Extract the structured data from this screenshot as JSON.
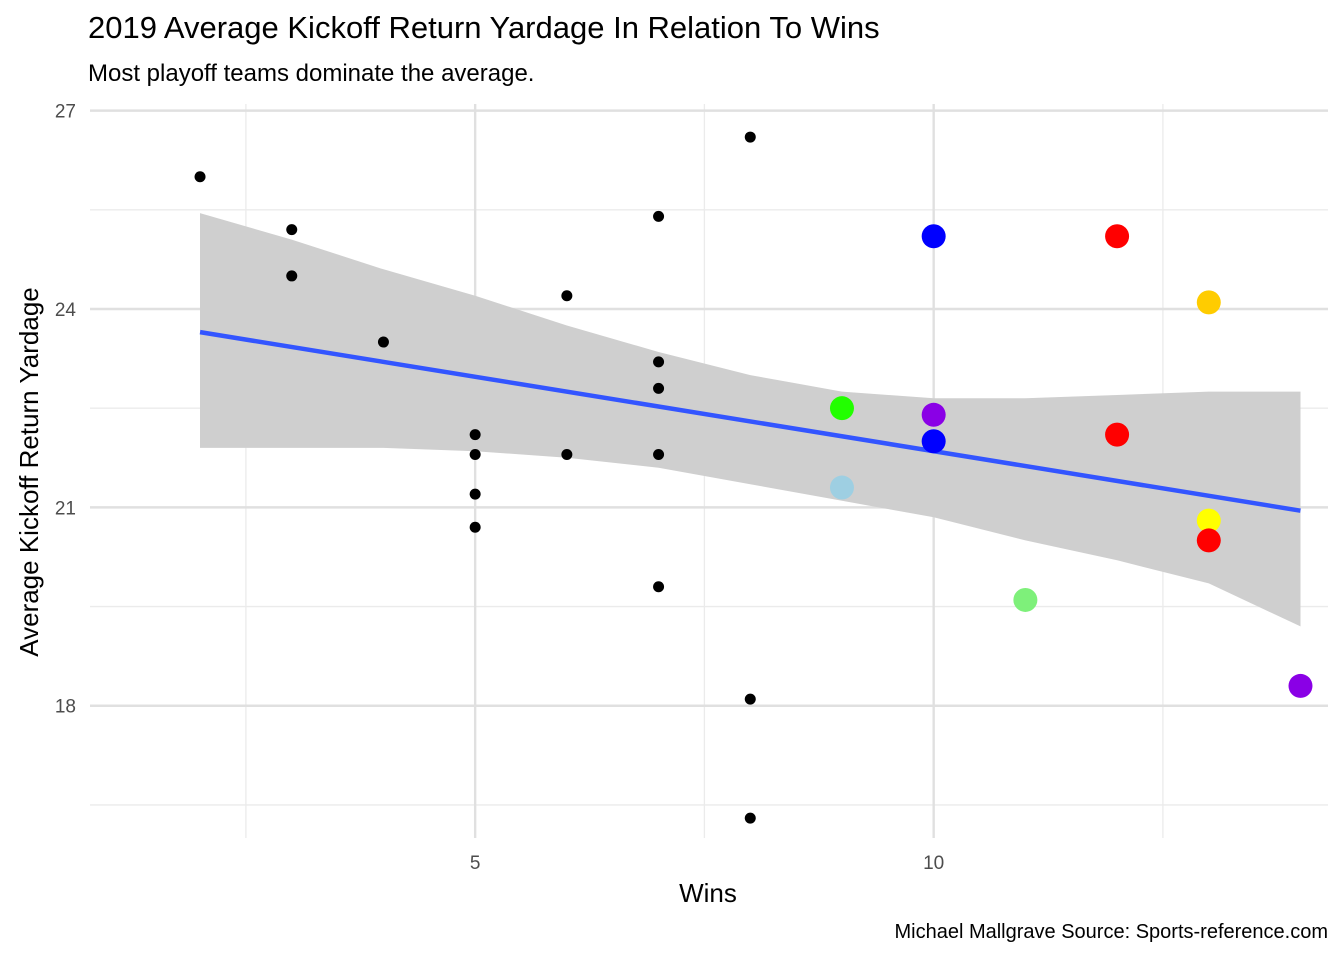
{
  "chart_data": {
    "type": "scatter",
    "title": "2019 Average Kickoff Return Yardage In Relation To Wins",
    "subtitle": "Most playoff teams dominate the average.",
    "caption": "Michael Mallgrave Source: Sports-reference.com",
    "xlabel": "Wins",
    "ylabel": "Average Kickoff Return Yardage",
    "xlim": [
      0.8,
      14.3
    ],
    "ylim": [
      16.0,
      27.1
    ],
    "x_ticks": [
      5,
      10
    ],
    "y_ticks": [
      18,
      21,
      24,
      27
    ],
    "grid": true,
    "points": [
      {
        "x": 2,
        "y": 26.0
      },
      {
        "x": 3,
        "y": 25.2
      },
      {
        "x": 3,
        "y": 24.5
      },
      {
        "x": 4,
        "y": 23.5
      },
      {
        "x": 5,
        "y": 22.1
      },
      {
        "x": 5,
        "y": 21.8
      },
      {
        "x": 5,
        "y": 21.2
      },
      {
        "x": 5,
        "y": 20.7
      },
      {
        "x": 6,
        "y": 24.2
      },
      {
        "x": 6,
        "y": 21.8
      },
      {
        "x": 7,
        "y": 25.4
      },
      {
        "x": 7,
        "y": 23.2
      },
      {
        "x": 7,
        "y": 22.8
      },
      {
        "x": 7,
        "y": 21.8
      },
      {
        "x": 7,
        "y": 19.8
      },
      {
        "x": 8,
        "y": 26.6
      },
      {
        "x": 8,
        "y": 18.1
      },
      {
        "x": 8,
        "y": 16.3
      }
    ],
    "playoff_points": [
      {
        "x": 9,
        "y": 22.5,
        "color": "#22ff00"
      },
      {
        "x": 9,
        "y": 21.3,
        "color": "#9ecfe2"
      },
      {
        "x": 10,
        "y": 25.1,
        "color": "#0000ff"
      },
      {
        "x": 10,
        "y": 22.4,
        "color": "#8a00e6"
      },
      {
        "x": 10,
        "y": 22.0,
        "color": "#0000ff"
      },
      {
        "x": 11,
        "y": 19.6,
        "color": "#7ef07a"
      },
      {
        "x": 12,
        "y": 25.1,
        "color": "#ff0000"
      },
      {
        "x": 12,
        "y": 22.1,
        "color": "#ff0000"
      },
      {
        "x": 13,
        "y": 24.1,
        "color": "#ffcc00"
      },
      {
        "x": 13,
        "y": 20.8,
        "color": "#ffff00"
      },
      {
        "x": 13,
        "y": 20.5,
        "color": "#ff0000"
      },
      {
        "x": 14,
        "y": 18.3,
        "color": "#8a00e6"
      }
    ],
    "trend_line": {
      "x": [
        2,
        14
      ],
      "y": [
        23.65,
        20.95
      ],
      "color": "#3355ff"
    },
    "confidence_band": {
      "color": "#cfcfcf",
      "x": [
        2,
        3,
        4,
        5,
        6,
        7,
        8,
        9,
        10,
        11,
        12,
        13,
        14
      ],
      "upper": [
        25.45,
        25.05,
        24.6,
        24.2,
        23.75,
        23.35,
        23.0,
        22.75,
        22.65,
        22.65,
        22.7,
        22.75,
        22.75
      ],
      "lower": [
        21.9,
        21.9,
        21.9,
        21.85,
        21.75,
        21.6,
        21.35,
        21.1,
        20.85,
        20.5,
        20.2,
        19.85,
        19.2
      ]
    }
  }
}
